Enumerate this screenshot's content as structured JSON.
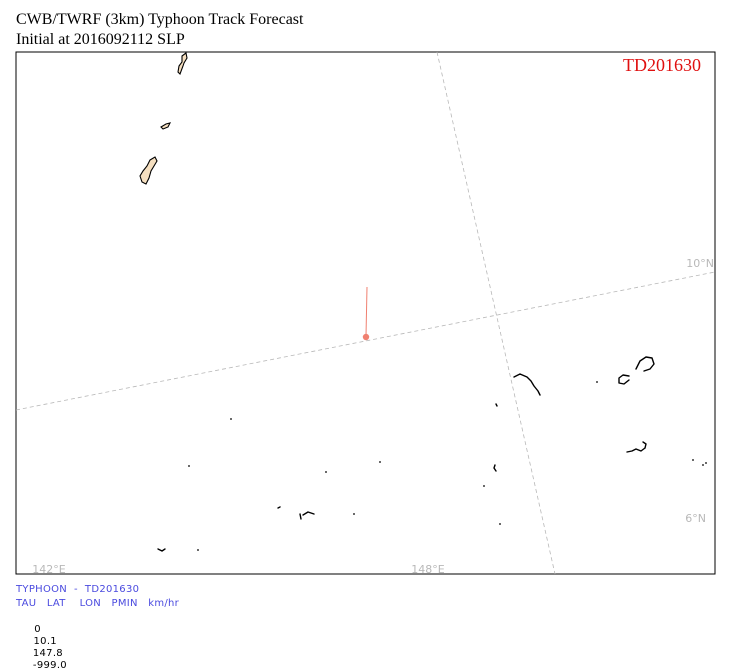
{
  "header": {
    "title_line1": "CWB/TWRF (3km) Typhoon Track Forecast",
    "title_line2": "Initial at 2016092112  SLP"
  },
  "map": {
    "storm_label": "TD201630",
    "storm_label_color": "#e01010",
    "track_color": "#f08070",
    "grid_color": "#b8b8b8",
    "land_fill": "#f5dfc0",
    "lat_labels": [
      "10°N",
      "6°N"
    ],
    "lon_labels": [
      "142°E",
      "148°E"
    ]
  },
  "footer": {
    "line1": "TYPHOON  -  TD201630",
    "line2": "TAU   LAT    LON   PMIN   km/hr",
    "table": {
      "headers": [
        "TAU",
        "LAT",
        "LON",
        "PMIN",
        "km/hr"
      ],
      "rows": [
        {
          "tau": "0",
          "lat": "10.1",
          "lon": "147.8",
          "pmin": "-999.0"
        }
      ]
    }
  }
}
